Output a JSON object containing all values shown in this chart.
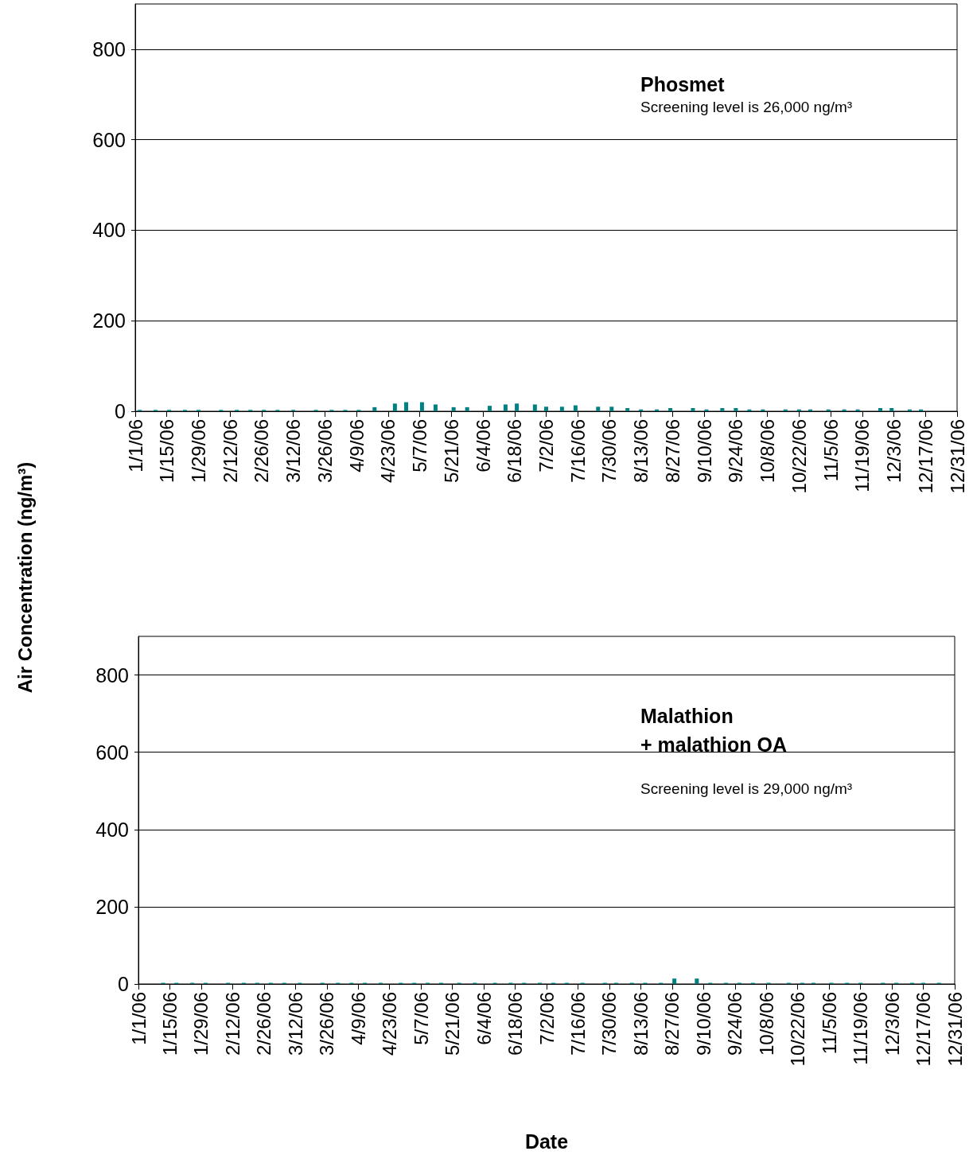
{
  "chart_data": [
    {
      "type": "bar",
      "title": "Phosmet",
      "annotations": [
        "Screening level is 26,000 ng/m³"
      ],
      "ylabel": "Air Concentration (ng/m³)",
      "x": [
        "--01-03",
        "--01-10",
        "--01-16",
        "--01-23",
        "--01-29",
        "--02-08",
        "--02-15",
        "--02-21",
        "--02-27",
        "--03-05",
        "--03-12",
        "--03-22",
        "--03-29",
        "--04-04",
        "--04-10",
        "--04-17",
        "--04-26",
        "--05-01",
        "--05-08",
        "--05-14",
        "--05-22",
        "--05-28",
        "--06-07",
        "--06-14",
        "--06-19",
        "--06-27",
        "--07-02",
        "--07-09",
        "--07-15",
        "--07-25",
        "--07-31",
        "--08-07",
        "--08-13",
        "--08-20",
        "--08-26",
        "--09-05",
        "--09-11",
        "--09-18",
        "--09-24",
        "--09-30",
        "--10-06",
        "--10-16",
        "--10-22",
        "--10-27",
        "--11-04",
        "--11-11",
        "--11-17",
        "--11-27",
        "--12-02",
        "--12-10",
        "--12-15"
      ],
      "values": [
        3,
        3,
        3,
        3,
        3,
        3,
        3,
        3,
        3,
        3,
        3,
        3,
        3,
        3,
        3,
        9,
        17,
        20,
        20,
        15,
        9,
        9,
        12,
        15,
        17,
        15,
        10,
        10,
        13,
        10,
        10,
        7,
        4,
        4,
        7,
        7,
        4,
        7,
        7,
        4,
        4,
        4,
        4,
        4,
        4,
        4,
        4,
        7,
        7,
        4,
        4
      ],
      "color": "#008080",
      "xlim": [
        "--01-01",
        "--12-31"
      ],
      "xticks": [
        {
          "value": "--01-01",
          "label": "1/1/06"
        },
        {
          "value": "--01-15",
          "label": "1/15/06"
        },
        {
          "value": "--01-29",
          "label": "1/29/06"
        },
        {
          "value": "--02-12",
          "label": "2/12/06"
        },
        {
          "value": "--02-26",
          "label": "2/26/06"
        },
        {
          "value": "--03-12",
          "label": "3/12/06"
        },
        {
          "value": "--03-26",
          "label": "3/26/06"
        },
        {
          "value": "--04-09",
          "label": "4/9/06"
        },
        {
          "value": "--04-23",
          "label": "4/23/06"
        },
        {
          "value": "--05-07",
          "label": "5/7/06"
        },
        {
          "value": "--05-21",
          "label": "5/21/06"
        },
        {
          "value": "--06-04",
          "label": "6/4/06"
        },
        {
          "value": "--06-18",
          "label": "6/18/06"
        },
        {
          "value": "--07-02",
          "label": "7/2/06"
        },
        {
          "value": "--07-16",
          "label": "7/16/06"
        },
        {
          "value": "--07-30",
          "label": "7/30/06"
        },
        {
          "value": "--08-13",
          "label": "8/13/06"
        },
        {
          "value": "--08-27",
          "label": "8/27/06"
        },
        {
          "value": "--09-10",
          "label": "9/10/06"
        },
        {
          "value": "--09-24",
          "label": "9/24/06"
        },
        {
          "value": "--10-08",
          "label": "10/8/06"
        },
        {
          "value": "--10-22",
          "label": "10/22/06"
        },
        {
          "value": "--11-05",
          "label": "11/5/06"
        },
        {
          "value": "--11-19",
          "label": "11/19/06"
        },
        {
          "value": "--12-03",
          "label": "12/3/06"
        },
        {
          "value": "--12-17",
          "label": "12/17/06"
        },
        {
          "value": "--12-31",
          "label": "12/31/06"
        }
      ],
      "ylim": [
        0,
        900
      ],
      "yticks": [
        0,
        200,
        400,
        600,
        800
      ],
      "grid": "y"
    },
    {
      "type": "bar",
      "title": "Malathion\n+ malathion OA",
      "annotations": [
        "Screening level is 29,000 ng/m³"
      ],
      "xlabel": "Date",
      "x": [
        "--01-12",
        "--01-18",
        "--01-25",
        "--01-31",
        "--02-10",
        "--02-17",
        "--02-23",
        "--03-01",
        "--03-07",
        "--03-14",
        "--03-24",
        "--03-31",
        "--04-06",
        "--04-12",
        "--04-19",
        "--04-28",
        "--05-04",
        "--05-10",
        "--05-16",
        "--05-24",
        "--05-31",
        "--06-09",
        "--06-16",
        "--06-22",
        "--06-29",
        "--07-05",
        "--07-11",
        "--07-18",
        "--07-28",
        "--08-02",
        "--08-09",
        "--08-15",
        "--08-22",
        "--08-28",
        "--09-07",
        "--09-13",
        "--09-20",
        "--09-26",
        "--10-02",
        "--10-09",
        "--10-18",
        "--10-24",
        "--10-29",
        "--11-06",
        "--11-13",
        "--11-19",
        "--11-29",
        "--12-05",
        "--12-12",
        "--12-17",
        "--12-24"
      ],
      "values": [
        3,
        3,
        3,
        3,
        3,
        3,
        3,
        3,
        3,
        3,
        3,
        3,
        3,
        3,
        3,
        3,
        3,
        3,
        3,
        3,
        3,
        3,
        3,
        3,
        3,
        3,
        3,
        3,
        3,
        3,
        3,
        3,
        3,
        14,
        14,
        3,
        3,
        3,
        3,
        3,
        3,
        3,
        3,
        3,
        3,
        3,
        3,
        3,
        3,
        3,
        3
      ],
      "color": "#008080",
      "xlim": [
        "--01-01",
        "--12-31"
      ],
      "xticks": [
        {
          "value": "--01-01",
          "label": "1/1/06"
        },
        {
          "value": "--01-15",
          "label": "1/15/06"
        },
        {
          "value": "--01-29",
          "label": "1/29/06"
        },
        {
          "value": "--02-12",
          "label": "2/12/06"
        },
        {
          "value": "--02-26",
          "label": "2/26/06"
        },
        {
          "value": "--03-12",
          "label": "3/12/06"
        },
        {
          "value": "--03-26",
          "label": "3/26/06"
        },
        {
          "value": "--04-09",
          "label": "4/9/06"
        },
        {
          "value": "--04-23",
          "label": "4/23/06"
        },
        {
          "value": "--05-07",
          "label": "5/7/06"
        },
        {
          "value": "--05-21",
          "label": "5/21/06"
        },
        {
          "value": "--06-04",
          "label": "6/4/06"
        },
        {
          "value": "--06-18",
          "label": "6/18/06"
        },
        {
          "value": "--07-02",
          "label": "7/2/06"
        },
        {
          "value": "--07-16",
          "label": "7/16/06"
        },
        {
          "value": "--07-30",
          "label": "7/30/06"
        },
        {
          "value": "--08-13",
          "label": "8/13/06"
        },
        {
          "value": "--08-27",
          "label": "8/27/06"
        },
        {
          "value": "--09-10",
          "label": "9/10/06"
        },
        {
          "value": "--09-24",
          "label": "9/24/06"
        },
        {
          "value": "--10-08",
          "label": "10/8/06"
        },
        {
          "value": "--10-22",
          "label": "10/22/06"
        },
        {
          "value": "--11-05",
          "label": "11/5/06"
        },
        {
          "value": "--11-19",
          "label": "11/19/06"
        },
        {
          "value": "--12-03",
          "label": "12/3/06"
        },
        {
          "value": "--12-17",
          "label": "12/17/06"
        },
        {
          "value": "--12-31",
          "label": "12/31/06"
        }
      ],
      "ylim": [
        0,
        900
      ],
      "yticks": [
        0,
        200,
        400,
        600,
        800
      ],
      "grid": "y"
    }
  ]
}
